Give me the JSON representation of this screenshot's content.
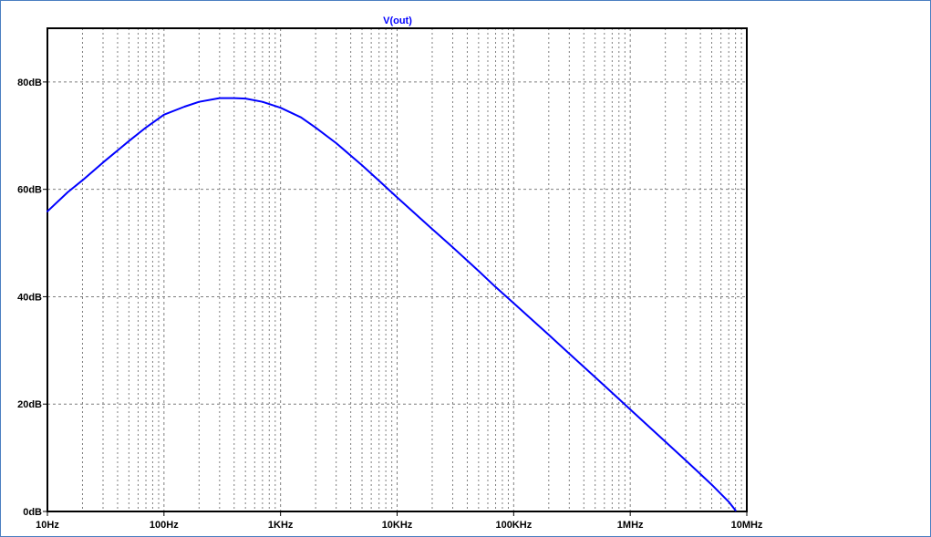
{
  "chart_data": {
    "type": "line",
    "title": "V(out)",
    "x_scale": "log",
    "xlim": [
      10,
      10000000
    ],
    "ylim": [
      0,
      90
    ],
    "grid": true,
    "x_ticks": [
      {
        "value": 10,
        "label": "10Hz"
      },
      {
        "value": 100,
        "label": "100Hz"
      },
      {
        "value": 1000,
        "label": "1KHz"
      },
      {
        "value": 10000,
        "label": "10KHz"
      },
      {
        "value": 100000,
        "label": "100KHz"
      },
      {
        "value": 1000000,
        "label": "1MHz"
      },
      {
        "value": 10000000,
        "label": "10MHz"
      }
    ],
    "y_ticks": [
      {
        "value": 0,
        "label": "0dB"
      },
      {
        "value": 20,
        "label": "20dB"
      },
      {
        "value": 40,
        "label": "40dB"
      },
      {
        "value": 60,
        "label": "60dB"
      },
      {
        "value": 80,
        "label": "80dB"
      }
    ],
    "series": [
      {
        "color": "#0000ff",
        "x": [
          10,
          15,
          20,
          30,
          50,
          70,
          100,
          150,
          200,
          300,
          400,
          500,
          700,
          1000,
          1500,
          2000,
          3000,
          5000,
          7000,
          10000,
          20000,
          30000,
          50000,
          70000,
          100000,
          200000,
          300000,
          500000,
          700000,
          1000000,
          2000000,
          3000000,
          5000000,
          7000000,
          8000000
        ],
        "y": [
          55.9,
          59.5,
          61.7,
          65.0,
          69.0,
          71.5,
          73.9,
          75.4,
          76.3,
          77.0,
          77.0,
          76.9,
          76.3,
          75.2,
          73.4,
          71.5,
          68.6,
          64.5,
          61.6,
          58.5,
          52.6,
          49.2,
          44.8,
          41.8,
          38.8,
          32.9,
          29.4,
          25.0,
          22.1,
          19.0,
          13.0,
          9.5,
          5.0,
          1.8,
          0.2
        ]
      }
    ],
    "colors": {
      "curve": "#0000ff",
      "title": "#0000ff",
      "axes": "#000000",
      "grid": "#7f7f7f",
      "frame_border": "#4a7fc1"
    }
  }
}
